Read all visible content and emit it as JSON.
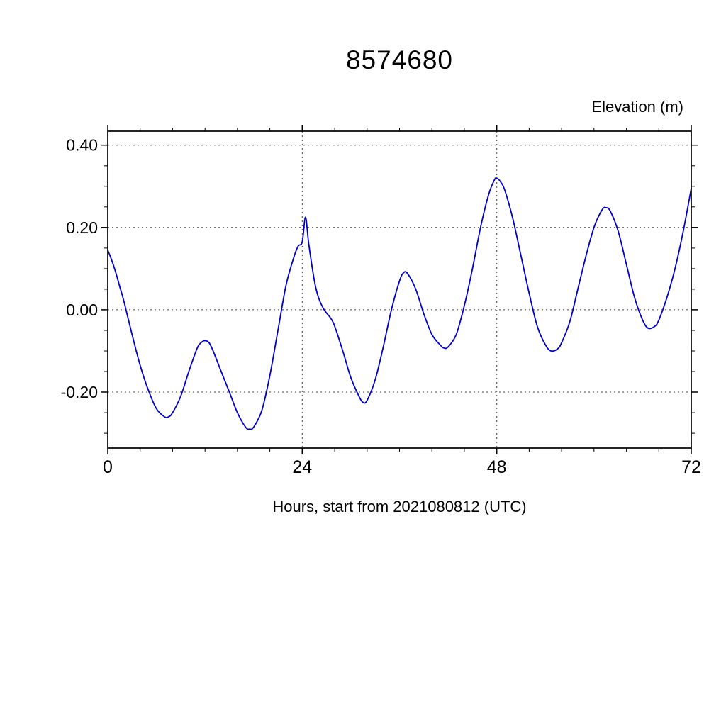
{
  "page": {
    "background": "#ffffff"
  },
  "chart_data": {
    "type": "line",
    "title": "8574680",
    "ylabel": "Elevation (m)",
    "xlabel": "Hours, start from 2021080812 (UTC)",
    "line_color": "#0000cd",
    "axis_color": "#000000",
    "grid_color": "#444444",
    "xlim": [
      0,
      72
    ],
    "ylim": [
      -0.336,
      0.434
    ],
    "xticks": {
      "major": [
        0,
        24,
        48,
        72
      ],
      "labels": [
        "0",
        "24",
        "48",
        "72"
      ],
      "minor_interval": 4
    },
    "yticks": {
      "major": [
        -0.2,
        0.0,
        0.2,
        0.4
      ],
      "labels": [
        "-0.20",
        "0.00",
        "0.20",
        "0.40"
      ],
      "minor_interval": 0.05
    },
    "grid": {
      "x": [
        24,
        48
      ],
      "y": [
        -0.2,
        0.0,
        0.2,
        0.4
      ],
      "style": "dotted"
    },
    "legend": null,
    "series": [
      {
        "name": "elevation",
        "points": [
          [
            0,
            0.145
          ],
          [
            0.5,
            0.12
          ],
          [
            1,
            0.09
          ],
          [
            1.5,
            0.055
          ],
          [
            2,
            0.02
          ],
          [
            3,
            -0.06
          ],
          [
            4,
            -0.135
          ],
          [
            5,
            -0.195
          ],
          [
            6,
            -0.24
          ],
          [
            7,
            -0.26
          ],
          [
            7.5,
            -0.26
          ],
          [
            8,
            -0.25
          ],
          [
            9,
            -0.21
          ],
          [
            10,
            -0.15
          ],
          [
            11,
            -0.095
          ],
          [
            11.5,
            -0.08
          ],
          [
            12,
            -0.075
          ],
          [
            12.5,
            -0.08
          ],
          [
            13,
            -0.1
          ],
          [
            14,
            -0.15
          ],
          [
            15,
            -0.2
          ],
          [
            16,
            -0.25
          ],
          [
            17,
            -0.285
          ],
          [
            17.5,
            -0.29
          ],
          [
            18,
            -0.285
          ],
          [
            19,
            -0.245
          ],
          [
            20,
            -0.16
          ],
          [
            21,
            -0.05
          ],
          [
            22,
            0.06
          ],
          [
            23,
            0.13
          ],
          [
            23.5,
            0.155
          ],
          [
            24,
            0.165
          ],
          [
            24.4,
            0.225
          ],
          [
            24.8,
            0.16
          ],
          [
            25.5,
            0.07
          ],
          [
            26,
            0.03
          ],
          [
            26.7,
            0.0
          ],
          [
            27.5,
            -0.02
          ],
          [
            28,
            -0.04
          ],
          [
            29,
            -0.1
          ],
          [
            30,
            -0.165
          ],
          [
            31,
            -0.21
          ],
          [
            31.5,
            -0.225
          ],
          [
            32,
            -0.22
          ],
          [
            33,
            -0.17
          ],
          [
            34,
            -0.09
          ],
          [
            35,
            0.0
          ],
          [
            36,
            0.07
          ],
          [
            36.5,
            0.09
          ],
          [
            37,
            0.088
          ],
          [
            38,
            0.05
          ],
          [
            39,
            -0.01
          ],
          [
            40,
            -0.06
          ],
          [
            41,
            -0.085
          ],
          [
            41.5,
            -0.093
          ],
          [
            42,
            -0.09
          ],
          [
            43,
            -0.06
          ],
          [
            44,
            0.01
          ],
          [
            45,
            0.1
          ],
          [
            46,
            0.2
          ],
          [
            47,
            0.28
          ],
          [
            47.7,
            0.315
          ],
          [
            48,
            0.32
          ],
          [
            48.5,
            0.31
          ],
          [
            49,
            0.29
          ],
          [
            50,
            0.22
          ],
          [
            51,
            0.13
          ],
          [
            52,
            0.04
          ],
          [
            53,
            -0.04
          ],
          [
            54,
            -0.085
          ],
          [
            54.7,
            -0.1
          ],
          [
            55.5,
            -0.095
          ],
          [
            56,
            -0.08
          ],
          [
            57,
            -0.03
          ],
          [
            58,
            0.05
          ],
          [
            59,
            0.13
          ],
          [
            60,
            0.2
          ],
          [
            61,
            0.243
          ],
          [
            61.5,
            0.248
          ],
          [
            62,
            0.24
          ],
          [
            63,
            0.19
          ],
          [
            64,
            0.11
          ],
          [
            65,
            0.03
          ],
          [
            66,
            -0.025
          ],
          [
            66.7,
            -0.045
          ],
          [
            67.5,
            -0.04
          ],
          [
            68,
            -0.025
          ],
          [
            69,
            0.03
          ],
          [
            70,
            0.1
          ],
          [
            71,
            0.19
          ],
          [
            72,
            0.295
          ]
        ]
      }
    ]
  }
}
